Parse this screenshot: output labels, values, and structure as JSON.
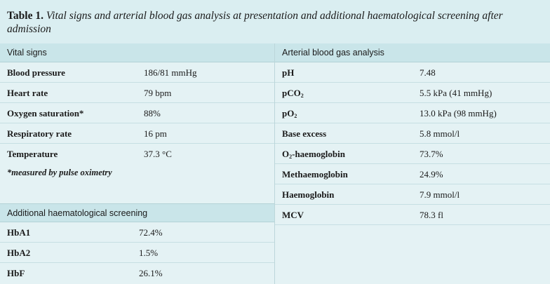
{
  "caption": {
    "label": "Table 1.",
    "text": "Vital signs and arterial blood gas analysis at presentation and additional haematological screening after admission"
  },
  "vitals": {
    "header": "Vital signs",
    "rows": [
      {
        "k": "Blood pressure",
        "v": "186/81 mmHg"
      },
      {
        "k": "Heart rate",
        "v": "79 bpm"
      },
      {
        "k": "Oxygen saturation*",
        "v": "88%"
      },
      {
        "k": "Respiratory rate",
        "v": "16 pm"
      },
      {
        "k": "Temperature",
        "v": "37.3 °C"
      }
    ],
    "note": "*measured by pulse oximetry"
  },
  "haem": {
    "header": "Additional haematological screening",
    "rows": [
      {
        "k": "HbA1",
        "v": "72.4%"
      },
      {
        "k": "HbA2",
        "v": "1.5%"
      },
      {
        "k": "HbF",
        "v": "26.1%"
      }
    ]
  },
  "abg": {
    "header": "Arterial blood gas analysis",
    "rows": [
      {
        "k": "pH",
        "v": "7.48"
      },
      {
        "k_pre": "pCO",
        "k_sub": "2",
        "k_post": "",
        "v": "5.5 kPa (41 mmHg)"
      },
      {
        "k_pre": "pO",
        "k_sub": "2",
        "k_post": "",
        "v": "13.0 kPa (98 mmHg)"
      },
      {
        "k": "Base excess",
        "v": "5.8 mmol/l"
      },
      {
        "k_pre": "O",
        "k_sub": "2",
        "k_post": "-haemoglobin",
        "v": "73.7%"
      },
      {
        "k": "Methaemoglobin",
        "v": "24.9%"
      },
      {
        "k": "Haemoglobin",
        "v": "7.9 mmol/l"
      },
      {
        "k": "MCV",
        "v": "78.3 fl"
      }
    ]
  }
}
